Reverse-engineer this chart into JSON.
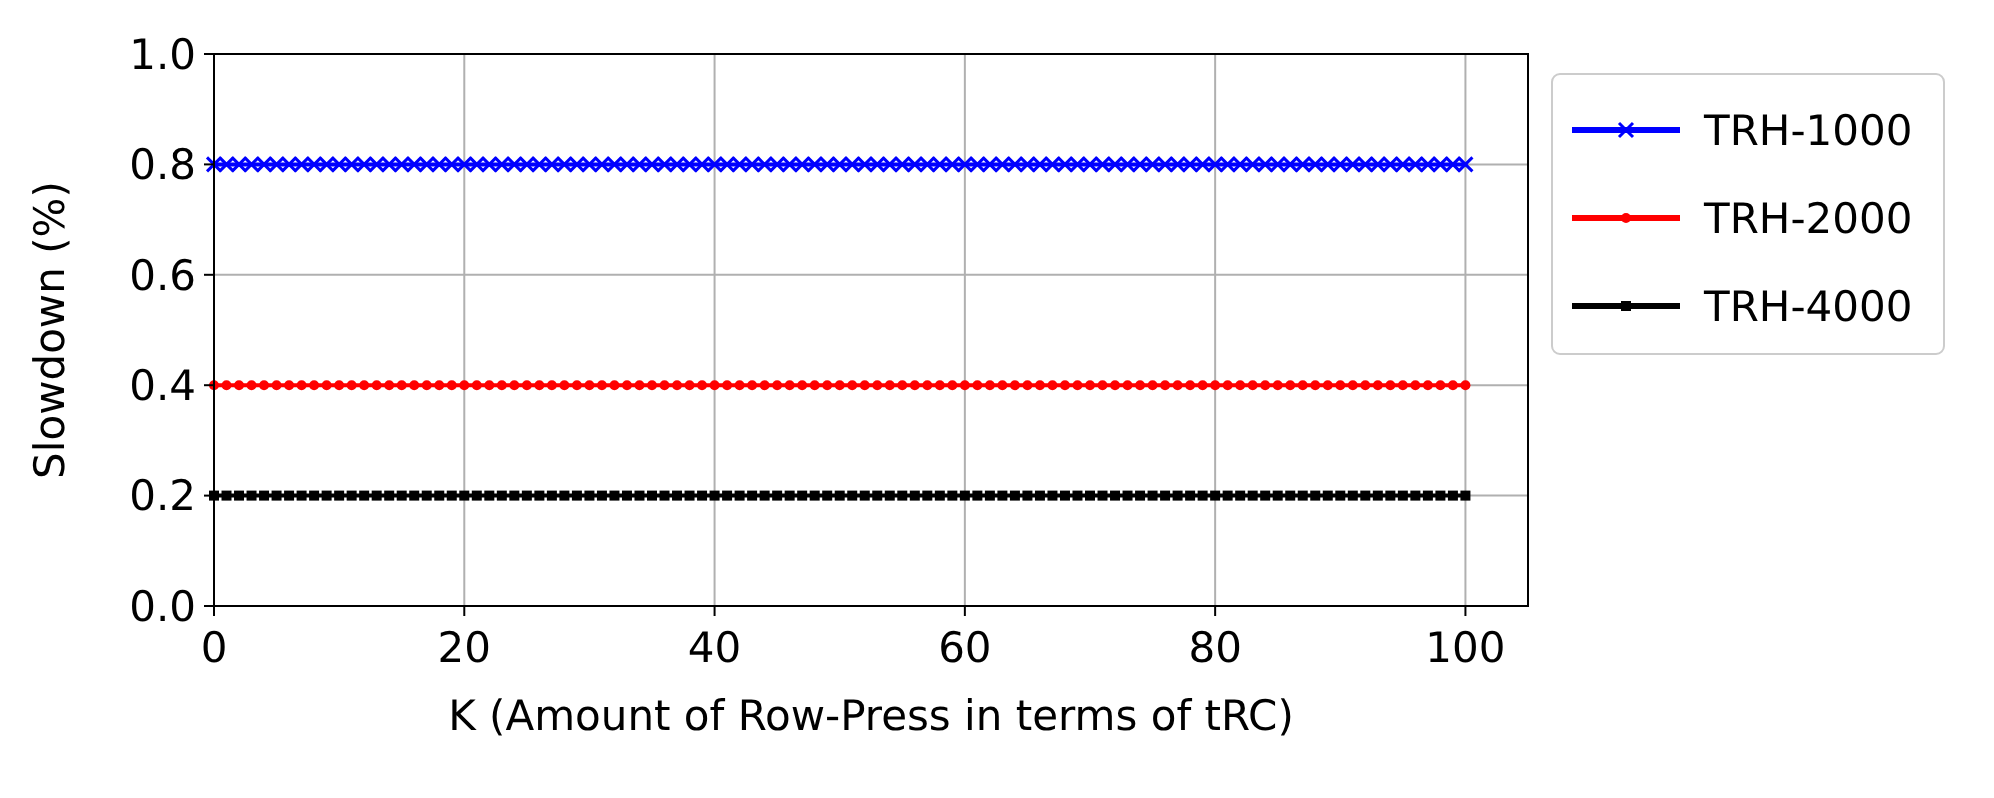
{
  "chart_data": {
    "type": "line",
    "xlabel": "K (Amount of Row-Press in terms of tRC)",
    "ylabel": "Slowdown (%)",
    "xlim": [
      0,
      105
    ],
    "xticks": [
      0,
      20,
      40,
      60,
      80,
      100
    ],
    "ylim": [
      0,
      1
    ],
    "yticks": [
      {
        "value": 0,
        "label": "0.0"
      },
      0.2,
      0.4,
      0.6,
      0.8,
      {
        "value": 1,
        "label": "1.0"
      }
    ],
    "grid": true,
    "legend": "right",
    "x": [
      0,
      1,
      2,
      3,
      4,
      5,
      6,
      7,
      8,
      9,
      10,
      11,
      12,
      13,
      14,
      15,
      16,
      17,
      18,
      19,
      20,
      21,
      22,
      23,
      24,
      25,
      26,
      27,
      28,
      29,
      30,
      31,
      32,
      33,
      34,
      35,
      36,
      37,
      38,
      39,
      40,
      41,
      42,
      43,
      44,
      45,
      46,
      47,
      48,
      49,
      50,
      51,
      52,
      53,
      54,
      55,
      56,
      57,
      58,
      59,
      60,
      61,
      62,
      63,
      64,
      65,
      66,
      67,
      68,
      69,
      70,
      71,
      72,
      73,
      74,
      75,
      76,
      77,
      78,
      79,
      80,
      81,
      82,
      83,
      84,
      85,
      86,
      87,
      88,
      89,
      90,
      91,
      92,
      93,
      94,
      95,
      96,
      97,
      98,
      99,
      100
    ],
    "series": [
      {
        "name": "TRH-1000",
        "color": "#0000ff",
        "marker": "cross",
        "values": [
          0.8,
          0.8,
          0.8,
          0.8,
          0.8,
          0.8,
          0.8,
          0.8,
          0.8,
          0.8,
          0.8,
          0.8,
          0.8,
          0.8,
          0.8,
          0.8,
          0.8,
          0.8,
          0.8,
          0.8,
          0.8,
          0.8,
          0.8,
          0.8,
          0.8,
          0.8,
          0.8,
          0.8,
          0.8,
          0.8,
          0.8,
          0.8,
          0.8,
          0.8,
          0.8,
          0.8,
          0.8,
          0.8,
          0.8,
          0.8,
          0.8,
          0.8,
          0.8,
          0.8,
          0.8,
          0.8,
          0.8,
          0.8,
          0.8,
          0.8,
          0.8,
          0.8,
          0.8,
          0.8,
          0.8,
          0.8,
          0.8,
          0.8,
          0.8,
          0.8,
          0.8,
          0.8,
          0.8,
          0.8,
          0.8,
          0.8,
          0.8,
          0.8,
          0.8,
          0.8,
          0.8,
          0.8,
          0.8,
          0.8,
          0.8,
          0.8,
          0.8,
          0.8,
          0.8,
          0.8,
          0.8,
          0.8,
          0.8,
          0.8,
          0.8,
          0.8,
          0.8,
          0.8,
          0.8,
          0.8,
          0.8,
          0.8,
          0.8,
          0.8,
          0.8,
          0.8,
          0.8,
          0.8,
          0.8,
          0.8,
          0.8
        ]
      },
      {
        "name": "TRH-2000",
        "color": "#ff0000",
        "marker": "circle",
        "values": [
          0.4,
          0.4,
          0.4,
          0.4,
          0.4,
          0.4,
          0.4,
          0.4,
          0.4,
          0.4,
          0.4,
          0.4,
          0.4,
          0.4,
          0.4,
          0.4,
          0.4,
          0.4,
          0.4,
          0.4,
          0.4,
          0.4,
          0.4,
          0.4,
          0.4,
          0.4,
          0.4,
          0.4,
          0.4,
          0.4,
          0.4,
          0.4,
          0.4,
          0.4,
          0.4,
          0.4,
          0.4,
          0.4,
          0.4,
          0.4,
          0.4,
          0.4,
          0.4,
          0.4,
          0.4,
          0.4,
          0.4,
          0.4,
          0.4,
          0.4,
          0.4,
          0.4,
          0.4,
          0.4,
          0.4,
          0.4,
          0.4,
          0.4,
          0.4,
          0.4,
          0.4,
          0.4,
          0.4,
          0.4,
          0.4,
          0.4,
          0.4,
          0.4,
          0.4,
          0.4,
          0.4,
          0.4,
          0.4,
          0.4,
          0.4,
          0.4,
          0.4,
          0.4,
          0.4,
          0.4,
          0.4,
          0.4,
          0.4,
          0.4,
          0.4,
          0.4,
          0.4,
          0.4,
          0.4,
          0.4,
          0.4,
          0.4,
          0.4,
          0.4,
          0.4,
          0.4,
          0.4,
          0.4,
          0.4,
          0.4,
          0.4
        ]
      },
      {
        "name": "TRH-4000",
        "color": "#000000",
        "marker": "square",
        "values": [
          0.2,
          0.2,
          0.2,
          0.2,
          0.2,
          0.2,
          0.2,
          0.2,
          0.2,
          0.2,
          0.2,
          0.2,
          0.2,
          0.2,
          0.2,
          0.2,
          0.2,
          0.2,
          0.2,
          0.2,
          0.2,
          0.2,
          0.2,
          0.2,
          0.2,
          0.2,
          0.2,
          0.2,
          0.2,
          0.2,
          0.2,
          0.2,
          0.2,
          0.2,
          0.2,
          0.2,
          0.2,
          0.2,
          0.2,
          0.2,
          0.2,
          0.2,
          0.2,
          0.2,
          0.2,
          0.2,
          0.2,
          0.2,
          0.2,
          0.2,
          0.2,
          0.2,
          0.2,
          0.2,
          0.2,
          0.2,
          0.2,
          0.2,
          0.2,
          0.2,
          0.2,
          0.2,
          0.2,
          0.2,
          0.2,
          0.2,
          0.2,
          0.2,
          0.2,
          0.2,
          0.2,
          0.2,
          0.2,
          0.2,
          0.2,
          0.2,
          0.2,
          0.2,
          0.2,
          0.2,
          0.2,
          0.2,
          0.2,
          0.2,
          0.2,
          0.2,
          0.2,
          0.2,
          0.2,
          0.2,
          0.2,
          0.2,
          0.2,
          0.2,
          0.2,
          0.2,
          0.2,
          0.2,
          0.2,
          0.2,
          0.2
        ]
      }
    ]
  }
}
